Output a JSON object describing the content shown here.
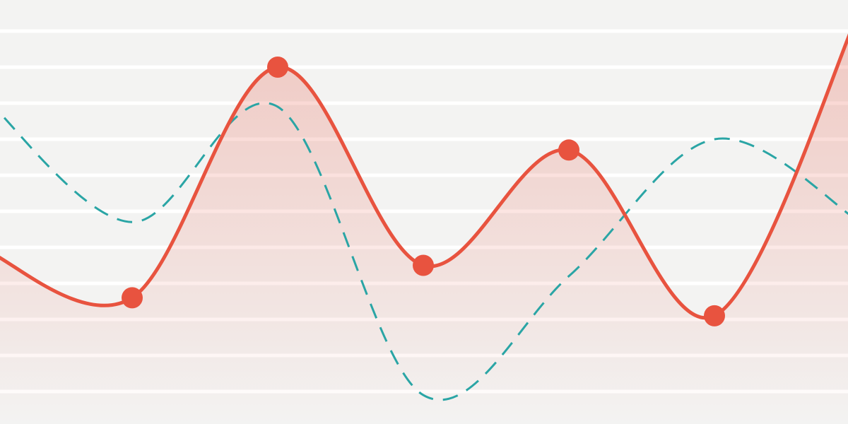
{
  "chart_data": {
    "type": "line",
    "categories": [
      null,
      null,
      null,
      null,
      null,
      null,
      null
    ],
    "series": [
      {
        "color": "#e8533f",
        "values": [
          3.9,
          2.6,
          9.0,
          3.5,
          6.7,
          2.1,
          10.6
        ],
        "dash": false,
        "area": true,
        "markers": true
      },
      {
        "color": "#2aa5a5",
        "values": [
          8.1,
          4.7,
          7.9,
          -0.1,
          3.2,
          7.0,
          4.7
        ],
        "dash": true,
        "area": false,
        "markers": false
      }
    ],
    "ylim": [
      0,
      10
    ],
    "yticks": [
      0,
      1,
      2,
      3,
      4,
      5,
      6,
      7,
      8,
      9,
      10
    ],
    "grid": true
  }
}
